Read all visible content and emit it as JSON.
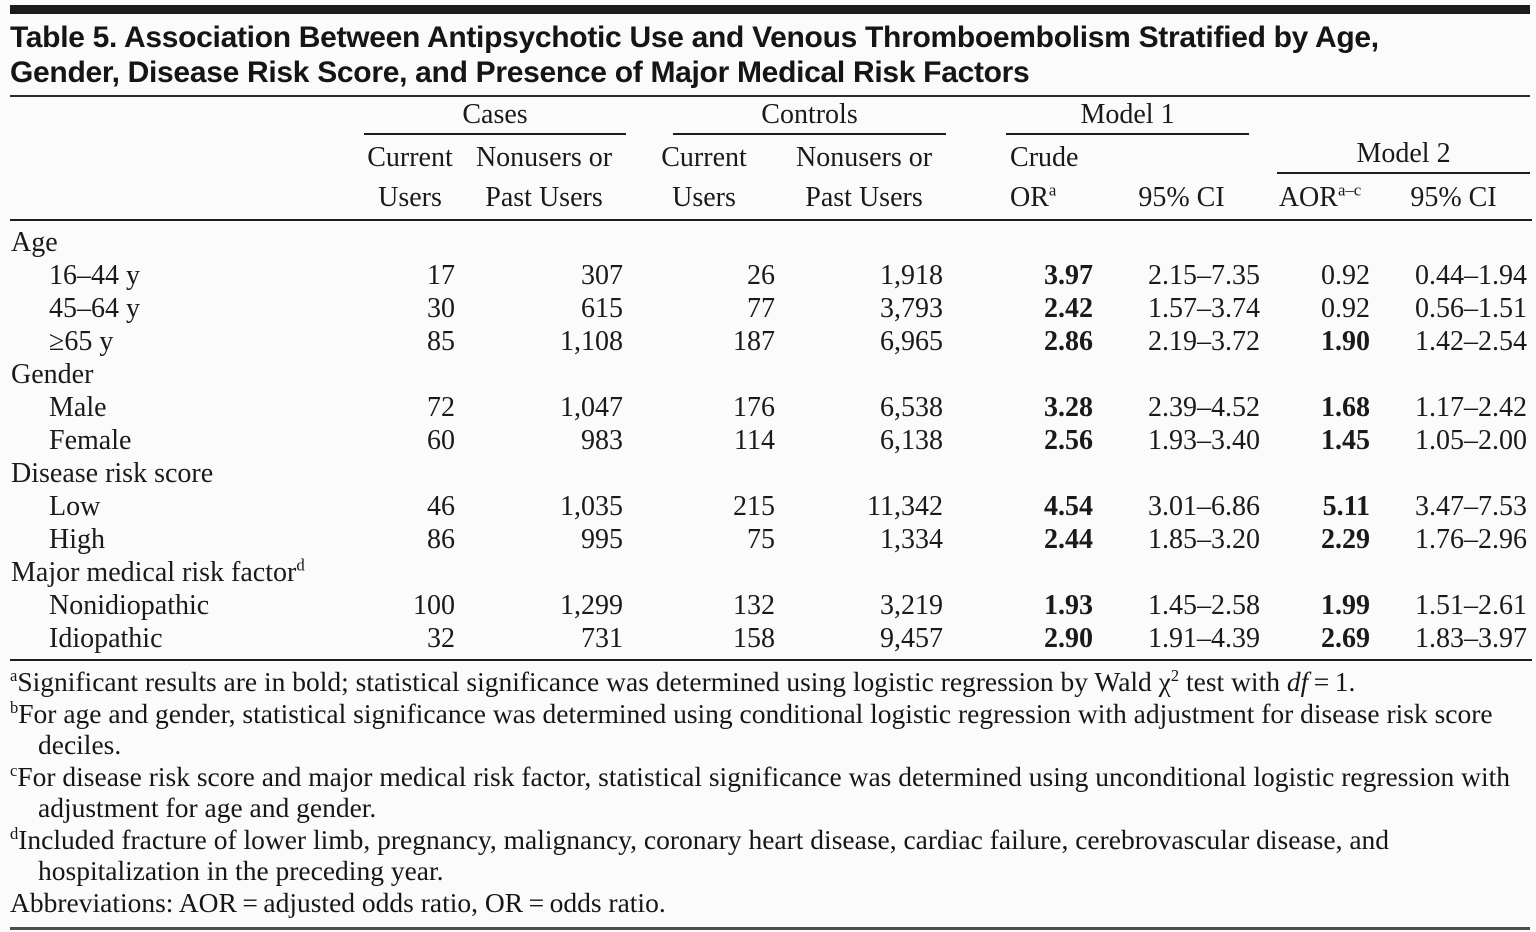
{
  "title": {
    "line1": "Table 5. Association Between Antipsychotic Use and Venous Thromboembolism Stratified by Age,",
    "line2": "Gender, Disease Risk Score, and Presence of Major Medical Risk Factors"
  },
  "header": {
    "groups": {
      "cases": "Cases",
      "controls": "Controls",
      "model1": "Model 1",
      "model2": "Model 2"
    },
    "sub": {
      "current": [
        "Current",
        "Users"
      ],
      "nonusers": [
        "Nonusers or",
        "Past Users"
      ],
      "crude": [
        "Crude",
        "OR"
      ],
      "crude_sup": "a",
      "ci": "95% CI",
      "aor": "AOR",
      "aor_sup": "a–c"
    }
  },
  "rows": [
    {
      "kind": "section",
      "label": "Age",
      "sup": ""
    },
    {
      "kind": "data",
      "label": "16–44 y",
      "values": [
        "17",
        "307",
        "26",
        "1,918",
        "3.97",
        "2.15–7.35",
        "0.92",
        "0.44–1.94"
      ],
      "bold": [
        4
      ]
    },
    {
      "kind": "data",
      "label": "45–64 y",
      "values": [
        "30",
        "615",
        "77",
        "3,793",
        "2.42",
        "1.57–3.74",
        "0.92",
        "0.56–1.51"
      ],
      "bold": [
        4
      ]
    },
    {
      "kind": "data",
      "label": "≥65 y",
      "values": [
        "85",
        "1,108",
        "187",
        "6,965",
        "2.86",
        "2.19–3.72",
        "1.90",
        "1.42–2.54"
      ],
      "bold": [
        4,
        6
      ]
    },
    {
      "kind": "section",
      "label": "Gender",
      "sup": ""
    },
    {
      "kind": "data",
      "label": "Male",
      "values": [
        "72",
        "1,047",
        "176",
        "6,538",
        "3.28",
        "2.39–4.52",
        "1.68",
        "1.17–2.42"
      ],
      "bold": [
        4,
        6
      ]
    },
    {
      "kind": "data",
      "label": "Female",
      "values": [
        "60",
        "983",
        "114",
        "6,138",
        "2.56",
        "1.93–3.40",
        "1.45",
        "1.05–2.00"
      ],
      "bold": [
        4,
        6
      ]
    },
    {
      "kind": "section",
      "label": "Disease risk score",
      "sup": ""
    },
    {
      "kind": "data",
      "label": "Low",
      "values": [
        "46",
        "1,035",
        "215",
        "11,342",
        "4.54",
        "3.01–6.86",
        "5.11",
        "3.47–7.53"
      ],
      "bold": [
        4,
        6
      ]
    },
    {
      "kind": "data",
      "label": "High",
      "values": [
        "86",
        "995",
        "75",
        "1,334",
        "2.44",
        "1.85–3.20",
        "2.29",
        "1.76–2.96"
      ],
      "bold": [
        4,
        6
      ]
    },
    {
      "kind": "section",
      "label": "Major medical risk factor",
      "sup": "d"
    },
    {
      "kind": "data",
      "label": "Nonidiopathic",
      "values": [
        "100",
        "1,299",
        "132",
        "3,219",
        "1.93",
        "1.45–2.58",
        "1.99",
        "1.51–2.61"
      ],
      "bold": [
        4,
        6
      ]
    },
    {
      "kind": "data",
      "label": "Idiopathic",
      "values": [
        "32",
        "731",
        "158",
        "9,457",
        "2.90",
        "1.91–4.39",
        "2.69",
        "1.83–3.97"
      ],
      "bold": [
        4,
        6
      ]
    }
  ],
  "footnotes": [
    {
      "segments": [
        {
          "t": "a",
          "style": "sup"
        },
        {
          "t": "Significant results are in bold; statistical significance was determined using logistic regression by Wald χ"
        },
        {
          "t": "2",
          "style": "sup"
        },
        {
          "t": " test with "
        },
        {
          "t": "df",
          "style": "i"
        },
        {
          "t": " = 1."
        }
      ]
    },
    {
      "segments": [
        {
          "t": "b",
          "style": "sup"
        },
        {
          "t": "For age and gender, statistical significance was determined using conditional logistic regression with adjustment for disease risk score deciles."
        }
      ]
    },
    {
      "segments": [
        {
          "t": "c",
          "style": "sup"
        },
        {
          "t": "For disease risk score and major medical risk factor, statistical significance was determined using unconditional logistic regression with adjustment for age and gender."
        }
      ]
    },
    {
      "segments": [
        {
          "t": "d",
          "style": "sup"
        },
        {
          "t": "Included fracture of lower limb, pregnancy, malignancy, coronary heart disease, cardiac failure, cerebrovascular disease, and hospitalization in the preceding year."
        }
      ]
    },
    {
      "segments": [
        {
          "t": "Abbreviations: AOR = adjusted odds ratio, OR = odds ratio."
        }
      ]
    }
  ]
}
